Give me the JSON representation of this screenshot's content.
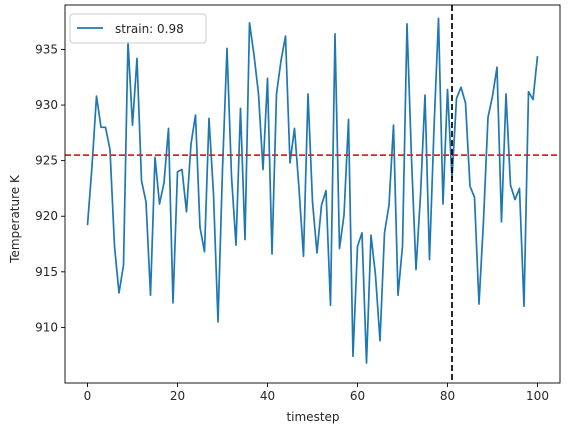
{
  "chart_data": {
    "type": "line",
    "xlabel": "timestep",
    "ylabel": "Temperature K",
    "xlim": [
      -5,
      105
    ],
    "ylim": [
      905.0,
      939.0
    ],
    "xticks": [
      0,
      20,
      40,
      60,
      80,
      100
    ],
    "yticks": [
      910,
      915,
      920,
      925,
      930,
      935
    ],
    "legend_position": "top-left",
    "grid": false,
    "series": [
      {
        "name": "strain: 0.98",
        "color": "#1f77b4",
        "x": [
          0,
          1,
          2,
          3,
          4,
          5,
          6,
          7,
          8,
          9,
          10,
          11,
          12,
          13,
          14,
          15,
          16,
          17,
          18,
          19,
          20,
          21,
          22,
          23,
          24,
          25,
          26,
          27,
          28,
          29,
          30,
          31,
          32,
          33,
          34,
          35,
          36,
          37,
          38,
          39,
          40,
          41,
          42,
          43,
          44,
          45,
          46,
          47,
          48,
          49,
          50,
          51,
          52,
          53,
          54,
          55,
          56,
          57,
          58,
          59,
          60,
          61,
          62,
          63,
          64,
          65,
          66,
          67,
          68,
          69,
          70,
          71,
          72,
          73,
          74,
          75,
          76,
          77,
          78,
          79,
          80,
          81,
          82,
          83,
          84,
          85,
          86,
          87,
          88,
          89,
          90,
          91,
          92,
          93,
          94,
          95,
          96,
          97,
          98,
          99,
          100
        ],
        "y": [
          919.2,
          924.5,
          930.8,
          928.0,
          928.0,
          926.0,
          917.3,
          913.1,
          915.6,
          935.7,
          928.2,
          934.2,
          923.2,
          921.3,
          912.9,
          925.3,
          921.1,
          923.0,
          927.9,
          912.2,
          924.0,
          924.2,
          920.4,
          926.5,
          929.1,
          919.0,
          916.8,
          928.8,
          922.0,
          910.5,
          924.2,
          935.1,
          923.6,
          917.4,
          929.7,
          917.9,
          937.4,
          934.5,
          931.0,
          924.2,
          932.4,
          916.6,
          931.0,
          934.0,
          936.2,
          924.8,
          927.9,
          922.5,
          916.4,
          931.0,
          921.3,
          916.7,
          921.0,
          922.3,
          912.0,
          936.4,
          917.1,
          920.1,
          928.7,
          907.4,
          917.3,
          918.5,
          906.8,
          918.3,
          914.7,
          908.8,
          918.5,
          921.0,
          928.2,
          912.9,
          917.3,
          937.3,
          925.2,
          915.2,
          921.9,
          930.9,
          916.1,
          927.9,
          937.8,
          921.1,
          931.4,
          923.4,
          930.6,
          931.6,
          930.2,
          922.7,
          921.7,
          912.1,
          919.6,
          928.9,
          930.8,
          933.4,
          919.5,
          931.0,
          922.8,
          921.5,
          922.5,
          911.9,
          931.2,
          930.5,
          934.4
        ]
      }
    ],
    "hlines": [
      {
        "y": 925.5,
        "color": "#d62728",
        "style": "dashed"
      }
    ],
    "vlines": [
      {
        "x": 81,
        "color": "#000000",
        "style": "dashed"
      }
    ]
  }
}
